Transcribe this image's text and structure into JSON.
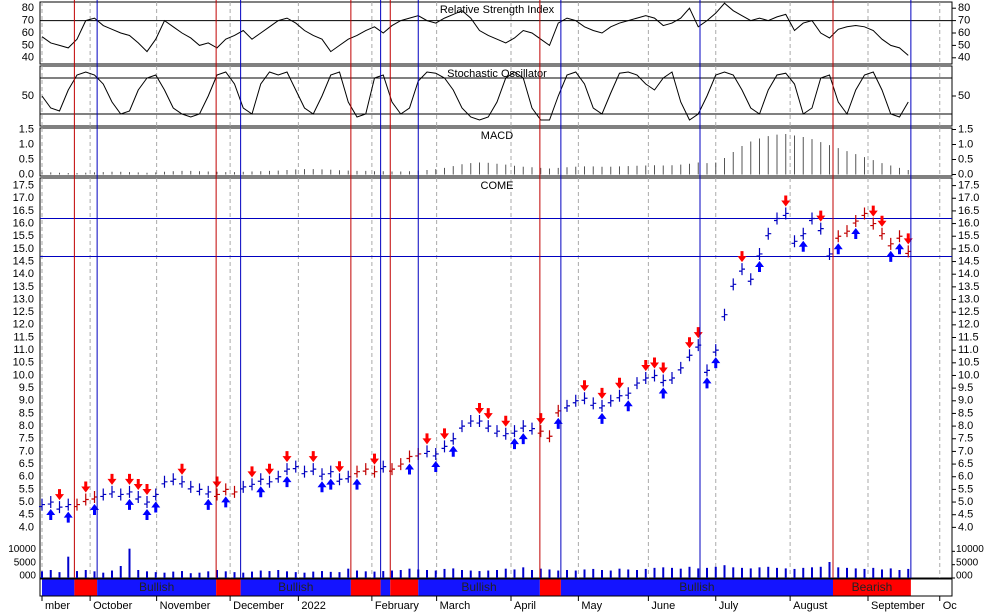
{
  "chart_data": [
    {
      "type": "line",
      "title": "Relative Strength Index",
      "color": "#000000",
      "ylim": [
        35,
        85
      ],
      "yticks": [
        40,
        50,
        60,
        70,
        80
      ],
      "levels": [
        70
      ],
      "values": [
        57,
        52,
        50,
        48,
        55,
        70,
        72,
        66,
        63,
        60,
        58,
        52,
        45,
        55,
        70,
        65,
        60,
        56,
        50,
        52,
        48,
        55,
        58,
        62,
        55,
        60,
        65,
        70,
        72,
        68,
        62,
        58,
        55,
        45,
        50,
        55,
        58,
        62,
        65,
        60,
        66,
        70,
        72,
        74,
        70,
        68,
        72,
        75,
        78,
        72,
        62,
        58,
        55,
        52,
        56,
        62,
        60,
        55,
        50,
        68,
        72,
        70,
        65,
        62,
        60,
        65,
        68,
        70,
        72,
        74,
        72,
        66,
        68,
        72,
        80,
        65,
        70,
        76,
        84,
        78,
        74,
        70,
        72,
        70,
        73,
        75,
        62,
        68,
        70,
        60,
        56,
        63,
        65,
        66,
        65,
        62,
        55,
        50,
        48,
        42
      ]
    },
    {
      "type": "line",
      "title": "Stochastic Oscillator",
      "color": "#000000",
      "ylim": [
        0,
        100
      ],
      "yticks": [
        50
      ],
      "levels": [
        80,
        20
      ],
      "values": [
        50,
        30,
        25,
        60,
        85,
        90,
        85,
        70,
        40,
        20,
        25,
        60,
        80,
        85,
        60,
        30,
        20,
        15,
        20,
        50,
        85,
        90,
        70,
        30,
        20,
        70,
        90,
        85,
        90,
        60,
        30,
        20,
        50,
        85,
        90,
        40,
        15,
        20,
        80,
        85,
        40,
        20,
        30,
        75,
        90,
        88,
        80,
        60,
        30,
        15,
        10,
        15,
        40,
        80,
        90,
        80,
        30,
        10,
        10,
        50,
        85,
        90,
        70,
        30,
        20,
        55,
        88,
        90,
        85,
        70,
        60,
        80,
        90,
        40,
        10,
        20,
        50,
        85,
        90,
        85,
        60,
        30,
        20,
        60,
        85,
        88,
        70,
        20,
        30,
        80,
        85,
        40,
        20,
        60,
        85,
        90,
        60,
        20,
        15,
        40
      ]
    },
    {
      "type": "bar",
      "title": "MACD",
      "color": "#555555",
      "ylim": [
        -0.05,
        1.55
      ],
      "yticks": [
        {
          "value": 0,
          "label": "0.0"
        },
        0.5,
        {
          "value": 1,
          "label": "1.0"
        },
        1.5
      ],
      "values": [
        0.08,
        0.07,
        0.06,
        0.05,
        0.05,
        0.06,
        0.07,
        0.08,
        0.09,
        0.09,
        0.08,
        0.07,
        0.06,
        0.07,
        0.09,
        0.11,
        0.12,
        0.12,
        0.11,
        0.1,
        0.09,
        0.08,
        0.08,
        0.09,
        0.1,
        0.11,
        0.12,
        0.13,
        0.15,
        0.17,
        0.18,
        0.18,
        0.17,
        0.16,
        0.14,
        0.13,
        0.12,
        0.12,
        0.11,
        0.11,
        0.1,
        0.1,
        0.11,
        0.13,
        0.15,
        0.18,
        0.22,
        0.28,
        0.34,
        0.38,
        0.4,
        0.39,
        0.36,
        0.33,
        0.29,
        0.26,
        0.24,
        0.22,
        0.2,
        0.22,
        0.24,
        0.26,
        0.27,
        0.27,
        0.26,
        0.26,
        0.27,
        0.28,
        0.29,
        0.3,
        0.31,
        0.3,
        0.31,
        0.33,
        0.36,
        0.4,
        0.38,
        0.4,
        0.55,
        0.75,
        0.95,
        1.1,
        1.2,
        1.28,
        1.33,
        1.35,
        1.3,
        1.25,
        1.18,
        1.08,
        0.98,
        0.88,
        0.78,
        0.68,
        0.58,
        0.48,
        0.38,
        0.3,
        0.22,
        0.15
      ]
    },
    {
      "type": "price",
      "title": "COME",
      "ylim": [
        2.0,
        17.8
      ],
      "yticks": [
        {
          "value": 4,
          "label": "4.0"
        },
        4.5,
        {
          "value": 5,
          "label": "5.0"
        },
        5.5,
        {
          "value": 6,
          "label": "6.0"
        },
        6.5,
        {
          "value": 7,
          "label": "7.0"
        },
        7.5,
        {
          "value": 8,
          "label": "8.0"
        },
        8.5,
        {
          "value": 9,
          "label": "9.0"
        },
        9.5,
        {
          "value": 10,
          "label": "10.0"
        },
        10.5,
        {
          "value": 11,
          "label": "11.0"
        },
        11.5,
        {
          "value": 12,
          "label": "12.0"
        },
        12.5,
        {
          "value": 13,
          "label": "13.0"
        },
        13.5,
        {
          "value": 14,
          "label": "14.0"
        },
        14.5,
        {
          "value": 15,
          "label": "15.0"
        },
        15.5,
        {
          "value": 16,
          "label": "16.0"
        },
        16.5,
        {
          "value": 17,
          "label": "17.0"
        },
        17.5
      ],
      "xlim": [
        0,
        104
      ],
      "xticks": [
        {
          "value": 0,
          "label": "mber"
        },
        {
          "value": 5.5,
          "label": "October"
        },
        {
          "value": 13.1,
          "label": "November"
        },
        {
          "value": 21.5,
          "label": "December"
        },
        {
          "value": 29.3,
          "label": "2022"
        },
        {
          "value": 37.7,
          "label": "February"
        },
        {
          "value": 45.1,
          "label": "March"
        },
        {
          "value": 53.6,
          "label": "April"
        },
        {
          "value": 61.3,
          "label": "May"
        },
        {
          "value": 69.3,
          "label": "June"
        },
        {
          "value": 77.0,
          "label": "July"
        },
        {
          "value": 85.5,
          "label": "August"
        },
        {
          "value": 94.4,
          "label": "September"
        },
        {
          "value": 102.6,
          "label": "Oc"
        }
      ],
      "values": [
        4.9,
        5.0,
        4.8,
        4.9,
        4.9,
        5.1,
        5.2,
        5.3,
        5.4,
        5.3,
        5.4,
        5.2,
        5.0,
        5.3,
        5.8,
        5.9,
        5.8,
        5.6,
        5.5,
        5.4,
        5.3,
        5.5,
        5.4,
        5.6,
        5.7,
        5.9,
        5.8,
        6.0,
        6.3,
        6.4,
        6.2,
        6.3,
        6.1,
        6.2,
        5.9,
        6.0,
        6.2,
        6.3,
        6.2,
        6.4,
        6.3,
        6.5,
        6.8,
        6.9,
        7.0,
        6.9,
        7.2,
        7.5,
        8.0,
        8.2,
        8.2,
        8.0,
        7.8,
        7.7,
        7.8,
        8.0,
        7.9,
        7.8,
        7.6,
        8.6,
        8.8,
        9.0,
        9.1,
        8.9,
        8.8,
        9.0,
        9.2,
        9.3,
        9.7,
        9.9,
        10.0,
        9.8,
        9.9,
        10.3,
        10.8,
        11.2,
        10.2,
        11.0,
        12.4,
        13.6,
        14.2,
        13.8,
        14.8,
        15.6,
        16.2,
        16.4,
        15.3,
        15.6,
        16.2,
        15.8,
        14.8,
        15.5,
        15.7,
        16.1,
        16.4,
        16.0,
        15.6,
        15.2,
        15.5,
        14.9
      ],
      "levels": [
        16.2,
        14.7
      ],
      "sell_signals": [
        2,
        5,
        8,
        10,
        11,
        12,
        16,
        20,
        24,
        26,
        28,
        31,
        34,
        38,
        44,
        46,
        50,
        51,
        53,
        57,
        62,
        64,
        66,
        69,
        70,
        71,
        74,
        75,
        80,
        85,
        89,
        95,
        96,
        99
      ],
      "buy_signals": [
        1,
        3,
        6,
        10,
        12,
        13,
        19,
        21,
        25,
        28,
        32,
        33,
        36,
        42,
        45,
        47,
        54,
        55,
        59,
        64,
        67,
        71,
        76,
        77,
        82,
        87,
        91,
        93,
        97,
        98
      ],
      "volume": {
        "color": "#0000cc",
        "ylim": [
          0,
          12000
        ],
        "yticks": [
          {
            "value": 0,
            "label": "000"
          },
          5000,
          10000
        ],
        "values": [
          2500,
          3000,
          2200,
          8000,
          2600,
          3000,
          2500,
          2000,
          2800,
          4500,
          11000,
          3000,
          2500,
          2200,
          2000,
          2400,
          2600,
          1800,
          2000,
          2500,
          3000,
          2500,
          2200,
          2000,
          2400,
          2800,
          2600,
          3000,
          2500,
          2200,
          2000,
          2400,
          2600,
          2300,
          2200,
          3500,
          2800,
          2500,
          2400,
          2600,
          2800,
          3000,
          3500,
          3200,
          3000,
          2800,
          3400,
          3600,
          3000,
          2800,
          2600,
          2800,
          3000,
          3500,
          3200,
          4000,
          3000,
          3500,
          3200,
          2800,
          3000,
          2800,
          3200,
          3400,
          3000,
          2800,
          3500,
          3200,
          3000,
          3400,
          3800,
          4000,
          3800,
          3500,
          4200,
          3600,
          3800,
          4200,
          4800,
          4000,
          3800,
          3600,
          4000,
          4200,
          3800,
          3600,
          3400,
          3800,
          4000,
          4200,
          6000,
          4000,
          3800,
          3600,
          3400,
          3800,
          3200,
          3600,
          3000,
          3400
        ]
      },
      "signals": [
        {
          "x": 3.7,
          "color": "#c00000"
        },
        {
          "x": 6.3,
          "color": "#0000c0"
        },
        {
          "x": 19.9,
          "color": "#c00000"
        },
        {
          "x": 22.7,
          "color": "#0000c0"
        },
        {
          "x": 35.3,
          "color": "#c00000"
        },
        {
          "x": 38.7,
          "color": "#0000c0"
        },
        {
          "x": 39.8,
          "color": "#c00000"
        },
        {
          "x": 43.0,
          "color": "#0000c0"
        },
        {
          "x": 56.9,
          "color": "#c00000"
        },
        {
          "x": 59.3,
          "color": "#0000c0"
        },
        {
          "x": 75.2,
          "color": "#0000c0"
        },
        {
          "x": 90.4,
          "color": "#c00000"
        },
        {
          "x": 99.3,
          "color": "#0000c0"
        }
      ],
      "regimes": [
        {
          "from": 0,
          "to": 3.7,
          "color": "#1414ff"
        },
        {
          "from": 3.7,
          "to": 6.3,
          "color": "#ff0000"
        },
        {
          "from": 6.3,
          "to": 19.9,
          "color": "#1414ff",
          "label": "Bullish"
        },
        {
          "from": 19.9,
          "to": 22.7,
          "color": "#ff0000"
        },
        {
          "from": 22.7,
          "to": 35.3,
          "color": "#1414ff",
          "label": "Bullish"
        },
        {
          "from": 35.3,
          "to": 38.7,
          "color": "#ff0000"
        },
        {
          "from": 38.7,
          "to": 39.8,
          "color": "#1414ff"
        },
        {
          "from": 39.8,
          "to": 43.0,
          "color": "#ff0000"
        },
        {
          "from": 43.0,
          "to": 56.9,
          "color": "#1414ff",
          "label": "Bullish"
        },
        {
          "from": 56.9,
          "to": 59.3,
          "color": "#ff0000"
        },
        {
          "from": 59.3,
          "to": 90.4,
          "color": "#1414ff",
          "label": "Bullish"
        },
        {
          "from": 90.4,
          "to": 99.3,
          "color": "#ff0000",
          "label": "Bearish"
        }
      ]
    }
  ]
}
